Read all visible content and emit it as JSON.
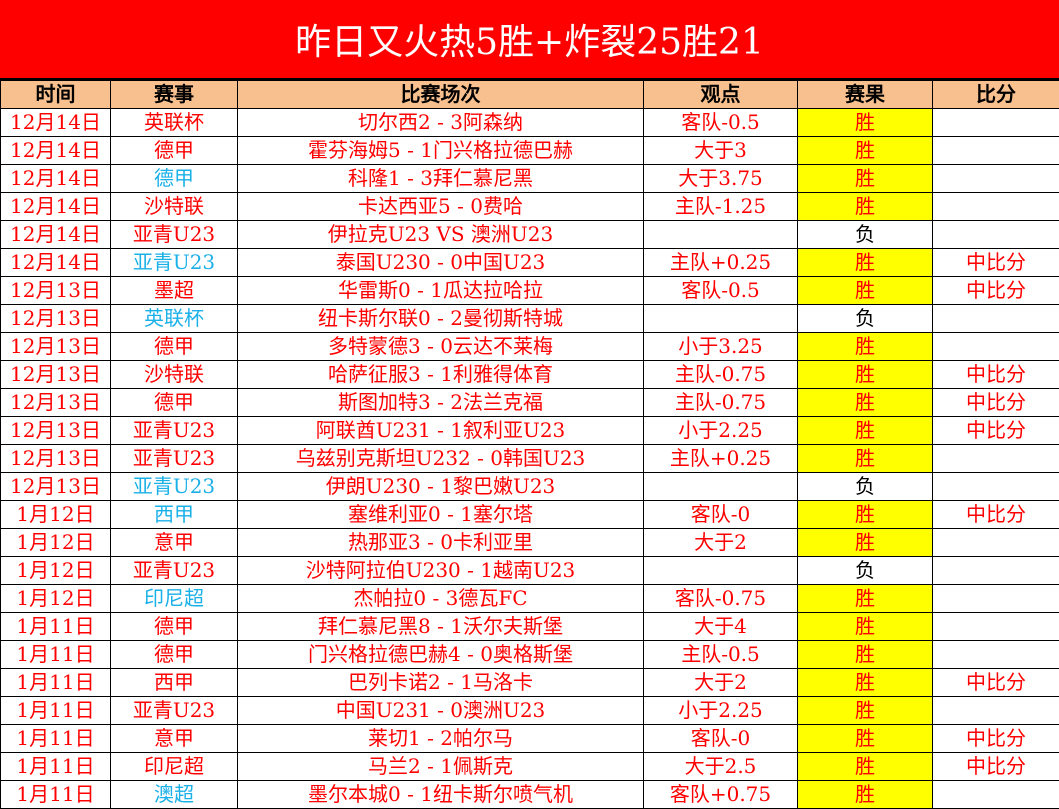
{
  "title": "昨日又火热5胜+炸裂25胜21",
  "colors": {
    "title_bg": "#ff0000",
    "header_bg": "#f8c08e",
    "win_bg": "#ffff00",
    "text_red": "#ff0000",
    "text_blue": "#1ab0e8"
  },
  "headers": [
    "时间",
    "赛事",
    "比赛场次",
    "观点",
    "赛果",
    "比分"
  ],
  "rows": [
    {
      "date": "12月14日",
      "league": "英联杯",
      "league_color": "red",
      "match": "切尔西2 - 3阿森纳",
      "pick": "客队-0.5",
      "result": "胜",
      "score": ""
    },
    {
      "date": "12月14日",
      "league": "德甲",
      "league_color": "red",
      "match": "霍芬海姆5 - 1门兴格拉德巴赫",
      "pick": "大于3",
      "result": "胜",
      "score": ""
    },
    {
      "date": "12月14日",
      "league": "德甲",
      "league_color": "blue",
      "match": "科隆1 - 3拜仁慕尼黑",
      "pick": "大于3.75",
      "result": "胜",
      "score": ""
    },
    {
      "date": "12月14日",
      "league": "沙特联",
      "league_color": "red",
      "match": "卡达西亚5 - 0费哈",
      "pick": "主队-1.25",
      "result": "胜",
      "score": ""
    },
    {
      "date": "12月14日",
      "league": "亚青U23",
      "league_color": "red",
      "match": "伊拉克U23 VS 澳洲U23",
      "pick": "",
      "result": "负",
      "score": ""
    },
    {
      "date": "12月14日",
      "league": "亚青U23",
      "league_color": "blue",
      "match": "泰国U230 - 0中国U23",
      "pick": "主队+0.25",
      "result": "胜",
      "score": "中比分"
    },
    {
      "date": "12月13日",
      "league": "墨超",
      "league_color": "red",
      "match": "华雷斯0 - 1瓜达拉哈拉",
      "pick": "客队-0.5",
      "result": "胜",
      "score": "中比分"
    },
    {
      "date": "12月13日",
      "league": "英联杯",
      "league_color": "blue",
      "match": "纽卡斯尔联0 - 2曼彻斯特城",
      "pick": "",
      "result": "负",
      "score": ""
    },
    {
      "date": "12月13日",
      "league": "德甲",
      "league_color": "red",
      "match": "多特蒙德3 - 0云达不莱梅",
      "pick": "小于3.25",
      "result": "胜",
      "score": ""
    },
    {
      "date": "12月13日",
      "league": "沙特联",
      "league_color": "red",
      "match": "哈萨征服3 - 1利雅得体育",
      "pick": "主队-0.75",
      "result": "胜",
      "score": "中比分"
    },
    {
      "date": "12月13日",
      "league": "德甲",
      "league_color": "red",
      "match": "斯图加特3 - 2法兰克福",
      "pick": "主队-0.75",
      "result": "胜",
      "score": "中比分"
    },
    {
      "date": "12月13日",
      "league": "亚青U23",
      "league_color": "red",
      "match": "阿联酋U231 - 1叙利亚U23",
      "pick": "小于2.25",
      "result": "胜",
      "score": "中比分"
    },
    {
      "date": "12月13日",
      "league": "亚青U23",
      "league_color": "red",
      "match": "乌兹别克斯坦U232 - 0韩国U23",
      "pick": "主队+0.25",
      "result": "胜",
      "score": ""
    },
    {
      "date": "12月13日",
      "league": "亚青U23",
      "league_color": "blue",
      "match": "伊朗U230 - 1黎巴嫩U23",
      "pick": "",
      "result": "负",
      "score": ""
    },
    {
      "date": "1月12日",
      "league": "西甲",
      "league_color": "blue",
      "match": "塞维利亚0 - 1塞尔塔",
      "pick": "客队-0",
      "result": "胜",
      "score": "中比分"
    },
    {
      "date": "1月12日",
      "league": "意甲",
      "league_color": "red",
      "match": "热那亚3 - 0卡利亚里",
      "pick": "大于2",
      "result": "胜",
      "score": ""
    },
    {
      "date": "1月12日",
      "league": "亚青U23",
      "league_color": "red",
      "match": "沙特阿拉伯U230 - 1越南U23",
      "pick": "",
      "result": "负",
      "score": ""
    },
    {
      "date": "1月12日",
      "league": "印尼超",
      "league_color": "blue",
      "match": "杰帕拉0 - 3德瓦FC",
      "pick": "客队-0.75",
      "result": "胜",
      "score": ""
    },
    {
      "date": "1月11日",
      "league": "德甲",
      "league_color": "red",
      "match": "拜仁慕尼黑8 - 1沃尔夫斯堡",
      "pick": "大于4",
      "result": "胜",
      "score": ""
    },
    {
      "date": "1月11日",
      "league": "德甲",
      "league_color": "red",
      "match": "门兴格拉德巴赫4 - 0奥格斯堡",
      "pick": "主队-0.5",
      "result": "胜",
      "score": ""
    },
    {
      "date": "1月11日",
      "league": "西甲",
      "league_color": "red",
      "match": "巴列卡诺2 - 1马洛卡",
      "pick": "大于2",
      "result": "胜",
      "score": "中比分"
    },
    {
      "date": "1月11日",
      "league": "亚青U23",
      "league_color": "red",
      "match": "中国U231 - 0澳洲U23",
      "pick": "小于2.25",
      "result": "胜",
      "score": ""
    },
    {
      "date": "1月11日",
      "league": "意甲",
      "league_color": "red",
      "match": "莱切1 - 2帕尔马",
      "pick": "客队-0",
      "result": "胜",
      "score": "中比分"
    },
    {
      "date": "1月11日",
      "league": "印尼超",
      "league_color": "red",
      "match": "马兰2 - 1佩斯克",
      "pick": "大于2.5",
      "result": "胜",
      "score": "中比分"
    },
    {
      "date": "1月11日",
      "league": "澳超",
      "league_color": "blue",
      "match": "墨尔本城0 - 1纽卡斯尔喷气机",
      "pick": "客队+0.75",
      "result": "胜",
      "score": ""
    }
  ]
}
